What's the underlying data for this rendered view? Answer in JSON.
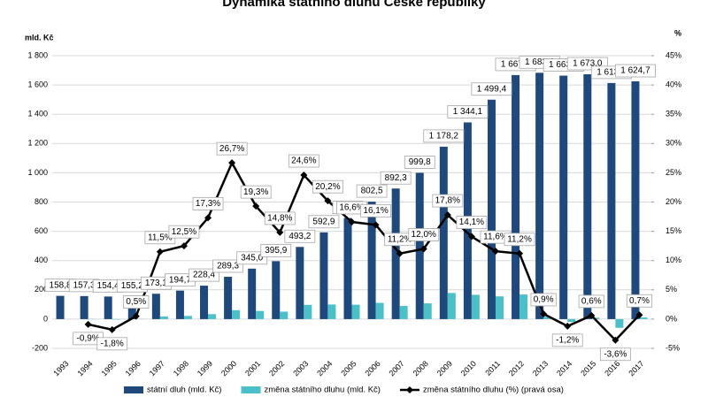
{
  "chart_data": {
    "type": "bar-line",
    "title": "Dynamika státního dluhu České republiky",
    "y_label": "mld. Kč",
    "y2_label": "%",
    "categories": [
      "1993",
      "1994",
      "1995",
      "1996",
      "1997",
      "1998",
      "1999",
      "2000",
      "2001",
      "2002",
      "2003",
      "2004",
      "2005",
      "2006",
      "2007",
      "2008",
      "2009",
      "2010",
      "2011",
      "2012",
      "2013",
      "2014",
      "2015",
      "2016",
      "2017"
    ],
    "ylim": [
      -200,
      1800
    ],
    "yticks": [
      -200,
      0,
      200,
      400,
      600,
      800,
      {
        "value": 1000,
        "label": "1 000"
      },
      {
        "value": 1200,
        "label": "1 200"
      },
      {
        "value": 1400,
        "label": "1 400"
      },
      {
        "value": 1600,
        "label": "1 600"
      },
      {
        "value": 1800,
        "label": "1 800"
      }
    ],
    "y2lim": [
      -5,
      45
    ],
    "y2ticks": [
      {
        "value": -5,
        "label": "-5%"
      },
      {
        "value": 0,
        "label": "0%"
      },
      {
        "value": 5,
        "label": "5%"
      },
      {
        "value": 10,
        "label": "10%"
      },
      {
        "value": 15,
        "label": "15%"
      },
      {
        "value": 20,
        "label": "20%"
      },
      {
        "value": 25,
        "label": "25%"
      },
      {
        "value": 30,
        "label": "30%"
      },
      {
        "value": 35,
        "label": "35%"
      },
      {
        "value": 40,
        "label": "40%"
      },
      {
        "value": 45,
        "label": "45%"
      }
    ],
    "series": [
      {
        "name": "státní dluh (mld. Kč)",
        "color": "#1f497d",
        "type": "bar",
        "values": [
          158.8,
          157.3,
          154.4,
          155.2,
          173.1,
          194.7,
          228.4,
          289.3,
          345.0,
          395.9,
          493.2,
          592.9,
          691.2,
          802.5,
          892.3,
          999.8,
          1178.2,
          1344.1,
          1499.4,
          1667.6,
          1683.3,
          1663.7,
          1673.0,
          1613.4,
          1624.7
        ],
        "value_labels": [
          "158,8",
          "157,3",
          "154,4",
          "155,2",
          "173,1",
          "194,7",
          "228,4",
          "289,3",
          "345,0",
          "395,9",
          "493,2",
          "592,9",
          "691,2",
          "802,5",
          "892,3",
          "999,8",
          "1 178,2",
          "1 344,1",
          "1 499,4",
          "1 667,6",
          "1 683,3",
          "1 663,7",
          "1 673,0",
          "1 613,4",
          "1 624,7"
        ]
      },
      {
        "name": "změna státního dluhu (mld. Kč)",
        "color": "#4bc0c8",
        "type": "bar",
        "values": [
          null,
          -1.5,
          -2.9,
          0.8,
          17.9,
          21.6,
          33.7,
          60.9,
          55.7,
          50.9,
          97.3,
          99.7,
          98.3,
          111.3,
          89.8,
          107.5,
          178.4,
          165.9,
          155.3,
          168.2,
          15.7,
          -19.6,
          9.3,
          -59.6,
          11.3
        ]
      },
      {
        "name": "změna státního dluhu (%) (pravá osa)",
        "color": "#000000",
        "type": "line",
        "axis": "y2",
        "values": [
          null,
          -0.9,
          -1.8,
          0.5,
          11.5,
          12.5,
          17.3,
          26.7,
          19.3,
          14.8,
          24.6,
          20.2,
          16.6,
          16.1,
          11.2,
          12.0,
          17.8,
          14.1,
          11.6,
          11.2,
          0.9,
          -1.2,
          0.6,
          -3.6,
          0.7
        ],
        "value_labels": [
          null,
          "-0,9%",
          "-1,8%",
          "0,5%",
          "11,5%",
          "12,5%",
          "17,3%",
          "26,7%",
          "19,3%",
          "14,8%",
          "24,6%",
          "20,2%",
          "16,6%",
          "16,1%",
          "11,2%",
          "12,0%",
          "17,8%",
          "14,1%",
          "11,6%",
          "11,2%",
          "0,9%",
          "-1,2%",
          "0,6%",
          "-3,6%",
          "0,7%"
        ]
      }
    ]
  }
}
